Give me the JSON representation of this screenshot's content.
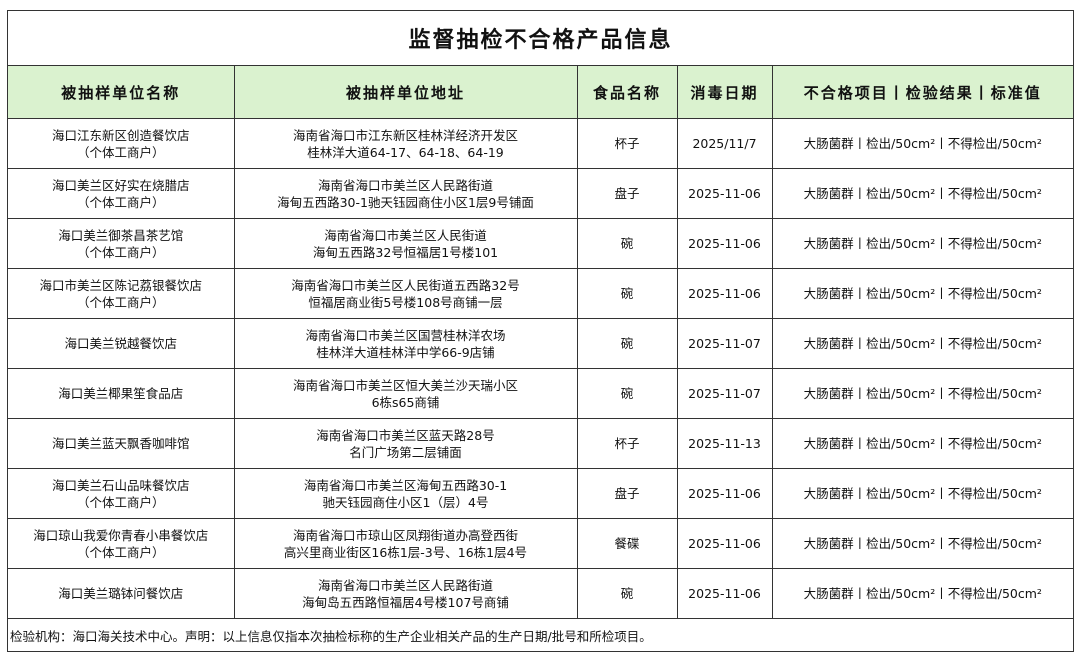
{
  "title": "监督抽检不合格产品信息",
  "header_bg": "#daf2cf",
  "columns": [
    "被抽样单位名称",
    "被抽样单位地址",
    "食品名称",
    "消毒日期",
    "不合格项目丨检验结果丨标准值"
  ],
  "rows": [
    {
      "name": [
        "海口江东新区创造餐饮店",
        "（个体工商户）"
      ],
      "address": [
        "海南省海口市江东新区桂林洋经济开发区",
        "桂林洋大道64-17、64-18、64-19"
      ],
      "food": "杯子",
      "date": "2025/11/7",
      "result": "大肠菌群丨检出/50cm²丨不得检出/50cm²"
    },
    {
      "name": [
        "海口美兰区好实在烧腊店",
        "（个体工商户）"
      ],
      "address": [
        "海南省海口市美兰区人民路街道",
        "海甸五西路30-1驰天钰园商住小区1层9号铺面"
      ],
      "food": "盘子",
      "date": "2025-11-06",
      "result": "大肠菌群丨检出/50cm²丨不得检出/50cm²"
    },
    {
      "name": [
        "海口美兰御茶昌茶艺馆",
        "（个体工商户）"
      ],
      "address": [
        "海南省海口市美兰区人民街道",
        "海甸五西路32号恒福居1号楼101"
      ],
      "food": "碗",
      "date": "2025-11-06",
      "result": "大肠菌群丨检出/50cm²丨不得检出/50cm²"
    },
    {
      "name": [
        "海口市美兰区陈记荔银餐饮店",
        "（个体工商户）"
      ],
      "address": [
        "海南省海口市美兰区人民街道五西路32号",
        "恒福居商业街5号楼108号商铺一层"
      ],
      "food": "碗",
      "date": "2025-11-06",
      "result": "大肠菌群丨检出/50cm²丨不得检出/50cm²"
    },
    {
      "name": [
        "海口美兰锐越餐饮店"
      ],
      "address": [
        "海南省海口市美兰区国营桂林洋农场",
        "桂林洋大道桂林洋中学66-9店铺"
      ],
      "food": "碗",
      "date": "2025-11-07",
      "result": "大肠菌群丨检出/50cm²丨不得检出/50cm²"
    },
    {
      "name": [
        "海口美兰椰果笙食品店"
      ],
      "address": [
        "海南省海口市美兰区恒大美兰沙天瑞小区",
        "6栋s65商铺"
      ],
      "food": "碗",
      "date": "2025-11-07",
      "result": "大肠菌群丨检出/50cm²丨不得检出/50cm²"
    },
    {
      "name": [
        "海口美兰蓝天飘香咖啡馆"
      ],
      "address": [
        "海南省海口市美兰区蓝天路28号",
        "名门广场第二层铺面"
      ],
      "food": "杯子",
      "date": "2025-11-13",
      "result": "大肠菌群丨检出/50cm²丨不得检出/50cm²"
    },
    {
      "name": [
        "海口美兰石山品味餐饮店",
        "（个体工商户）"
      ],
      "address": [
        "海南省海口市美兰区海甸五西路30-1",
        "驰天钰园商住小区1（层）4号"
      ],
      "food": "盘子",
      "date": "2025-11-06",
      "result": "大肠菌群丨检出/50cm²丨不得检出/50cm²"
    },
    {
      "name": [
        "海口琼山我爱你青春小串餐饮店",
        "（个体工商户）"
      ],
      "address": [
        "海南省海口市琼山区凤翔街道办高登西街",
        "高兴里商业街区16栋1层-3号、16栋1层4号"
      ],
      "food": "餐碟",
      "date": "2025-11-06",
      "result": "大肠菌群丨检出/50cm²丨不得检出/50cm²"
    },
    {
      "name": [
        "海口美兰璐钵问餐饮店"
      ],
      "address": [
        "海南省海口市美兰区人民路街道",
        "海甸岛五西路恒福居4号楼107号商铺"
      ],
      "food": "碗",
      "date": "2025-11-06",
      "result": "大肠菌群丨检出/50cm²丨不得检出/50cm²"
    }
  ],
  "footer": "检验机构：海口海关技术中心。声明：以上信息仅指本次抽检标称的生产企业相关产品的生产日期/批号和所检项目。"
}
